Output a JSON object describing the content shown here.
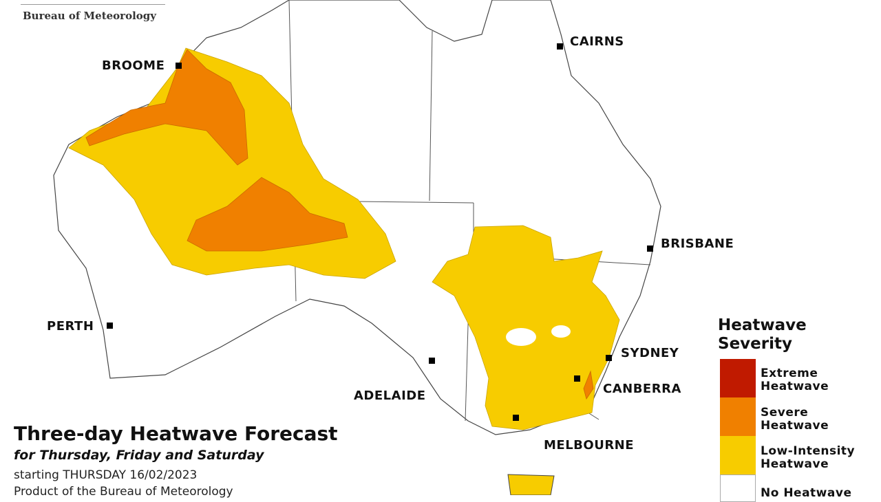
{
  "header": {
    "agency": "Bureau of Meteorology"
  },
  "map": {
    "title": "Three-day Heatwave Forecast",
    "subtitle": "for Thursday, Friday and Saturday",
    "starting": "starting THURSDAY 16/02/2023",
    "product": "Product of the Bureau of Meteorology",
    "cities": [
      {
        "name": "BROOME"
      },
      {
        "name": "CAIRNS"
      },
      {
        "name": "BRISBANE"
      },
      {
        "name": "PERTH"
      },
      {
        "name": "ADELAIDE"
      },
      {
        "name": "SYDNEY"
      },
      {
        "name": "CANBERRA"
      },
      {
        "name": "MELBOURNE"
      }
    ]
  },
  "legend": {
    "title_line1": "Heatwave",
    "title_line2": "Severity",
    "items": [
      {
        "line1": "Extreme",
        "line2": "Heatwave",
        "color": "#c01a00"
      },
      {
        "line1": "Severe",
        "line2": "Heatwave",
        "color": "#f08000"
      },
      {
        "line1": "Low-Intensity",
        "line2": "Heatwave",
        "color": "#f7cc00"
      },
      {
        "line1": "No Heatwave",
        "line2": "",
        "color": "#ffffff"
      }
    ]
  }
}
